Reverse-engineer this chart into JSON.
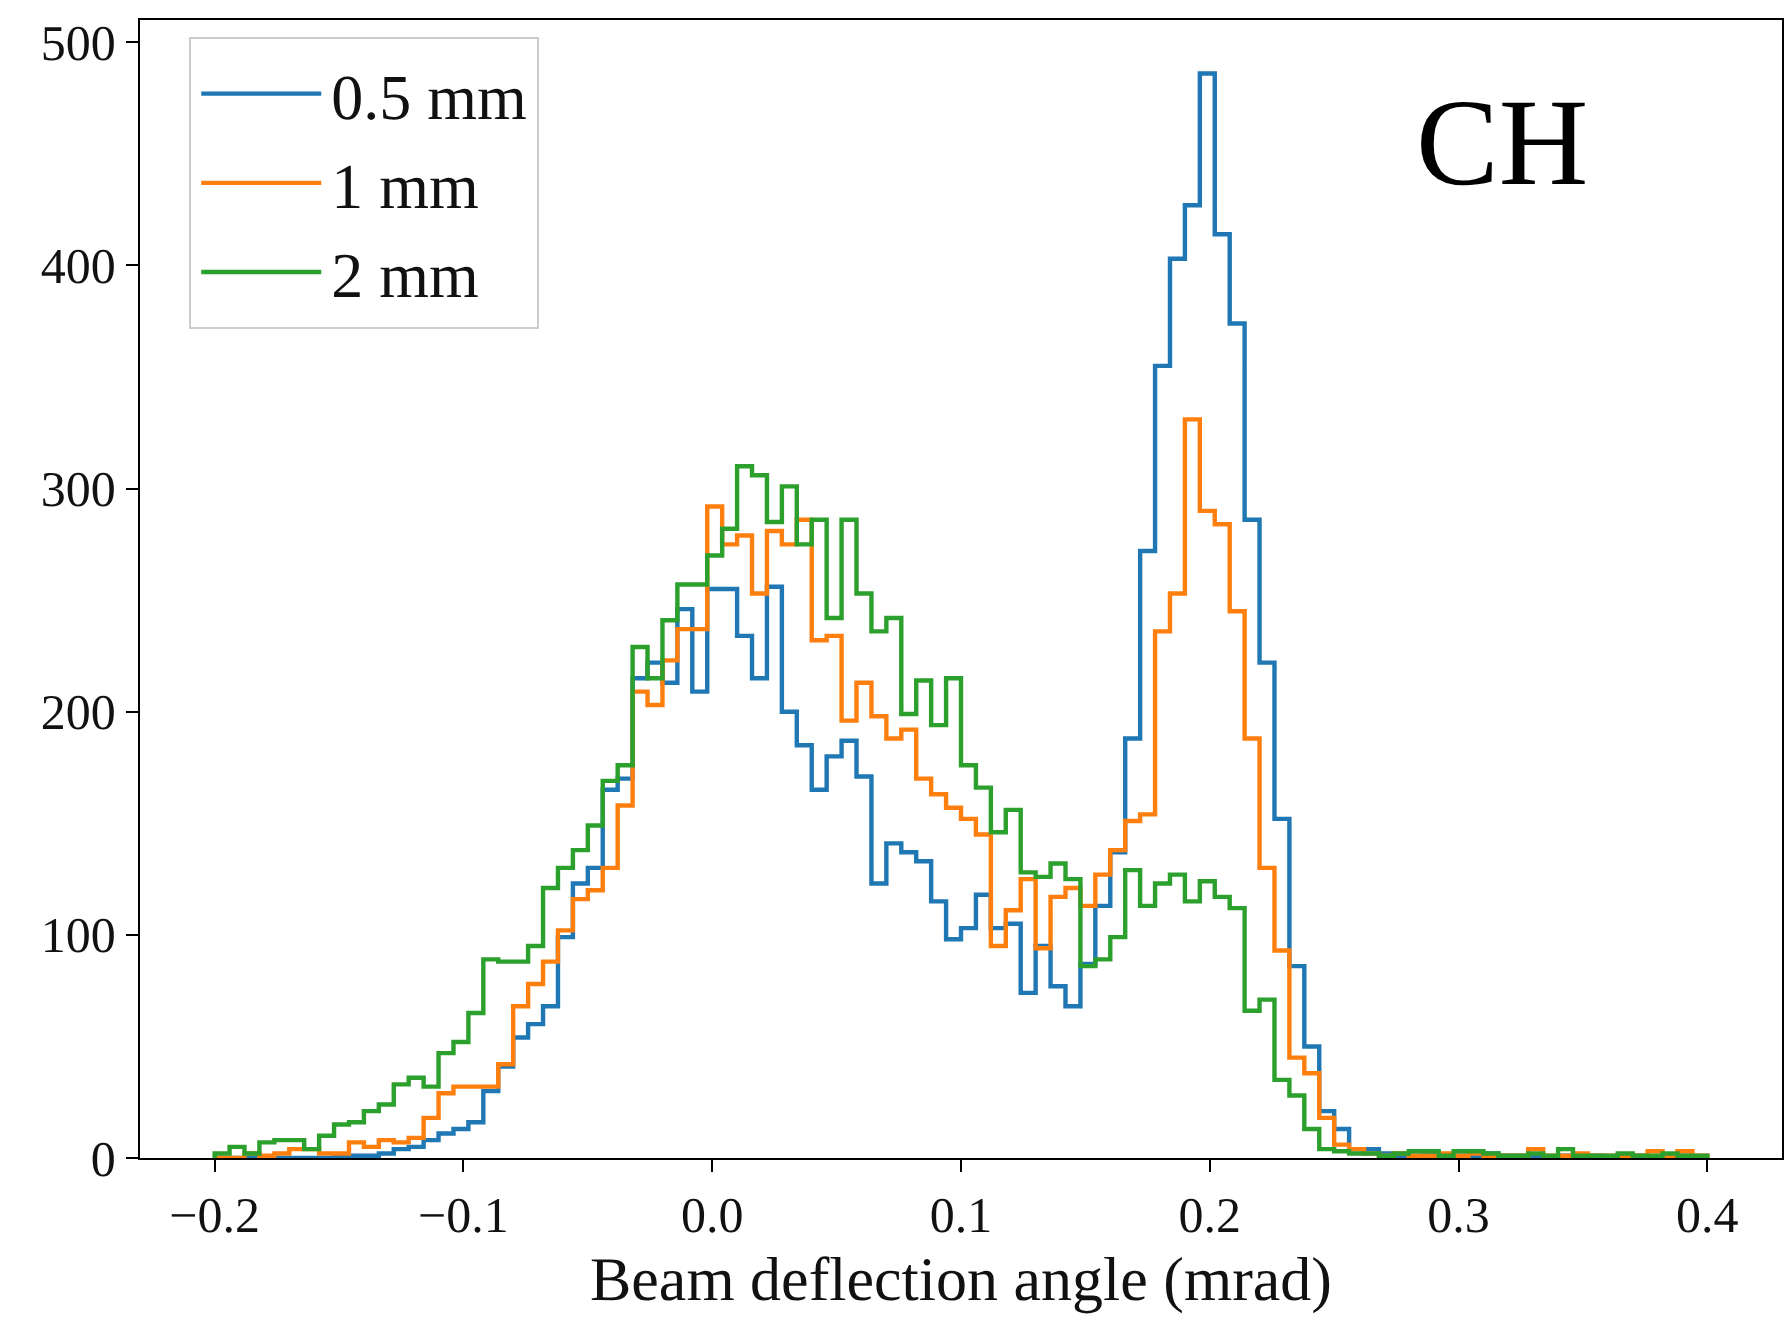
{
  "chart_data": {
    "type": "histogram",
    "xlabel": "Beam deflection angle (mrad)",
    "annotations": [
      "CH"
    ],
    "legend": "top left",
    "bins": [
      -0.2,
      -0.194,
      -0.188,
      -0.182,
      -0.176,
      -0.17,
      -0.164,
      -0.158,
      -0.152,
      -0.146,
      -0.14,
      -0.134,
      -0.128,
      -0.122,
      -0.116,
      -0.11,
      -0.104,
      -0.098,
      -0.092,
      -0.086,
      -0.08,
      -0.074,
      -0.068,
      -0.062,
      -0.056,
      -0.05,
      -0.044,
      -0.038,
      -0.032,
      -0.026,
      -0.02,
      -0.014,
      -0.008,
      -0.002,
      0.004,
      0.01,
      0.016,
      0.022,
      0.028,
      0.034,
      0.04,
      0.046,
      0.052,
      0.058,
      0.064,
      0.07,
      0.076,
      0.082,
      0.088,
      0.094,
      0.1,
      0.106,
      0.112,
      0.118,
      0.124,
      0.13,
      0.136,
      0.142,
      0.148,
      0.154,
      0.16,
      0.166,
      0.172,
      0.178,
      0.184,
      0.19,
      0.196,
      0.202,
      0.208,
      0.214,
      0.22,
      0.226,
      0.232,
      0.238,
      0.244,
      0.25,
      0.256,
      0.262,
      0.268,
      0.274,
      0.28,
      0.286,
      0.292,
      0.298,
      0.304,
      0.31,
      0.316,
      0.322,
      0.328,
      0.334,
      0.34,
      0.346,
      0.352,
      0.358,
      0.364,
      0.37,
      0.376,
      0.382,
      0.388,
      0.394,
      0.4
    ],
    "series": [
      {
        "name": "0.5 mm",
        "color": "#1f77b4",
        "values": [
          0,
          0,
          0,
          0,
          0,
          0,
          0,
          0,
          1,
          1,
          1,
          2,
          4,
          5,
          8,
          11,
          13,
          16,
          30,
          41,
          54,
          60,
          68,
          99,
          123,
          130,
          165,
          170,
          215,
          222,
          213,
          246,
          209,
          255,
          255,
          234,
          215,
          256,
          200,
          185,
          165,
          180,
          187,
          171,
          123,
          141,
          137,
          133,
          115,
          98,
          103,
          118,
          103,
          105,
          74,
          95,
          77,
          68,
          87,
          113,
          137,
          188,
          272,
          355,
          403,
          427,
          486,
          414,
          374,
          286,
          222,
          152,
          86,
          50,
          21,
          13,
          4,
          4,
          2,
          1,
          1,
          2,
          1,
          1,
          1,
          2,
          1,
          1,
          1,
          0,
          1,
          1,
          1,
          0,
          1,
          1,
          0,
          1,
          1,
          0
        ]
      },
      {
        "name": "1 mm",
        "color": "#ff7f0e",
        "values": [
          0,
          0,
          2,
          1,
          2,
          4,
          4,
          2,
          2,
          7,
          5,
          8,
          7,
          9,
          18,
          29,
          32,
          32,
          32,
          42,
          68,
          78,
          88,
          102,
          116,
          120,
          130,
          158,
          209,
          203,
          223,
          237,
          237,
          292,
          275,
          279,
          253,
          281,
          275,
          286,
          232,
          234,
          196,
          213,
          198,
          188,
          192,
          170,
          163,
          157,
          152,
          145,
          95,
          111,
          125,
          94,
          117,
          121,
          113,
          127,
          138,
          151,
          154,
          236,
          253,
          331,
          290,
          284,
          245,
          188,
          130,
          93,
          45,
          38,
          18,
          6,
          4,
          2,
          1,
          2,
          1,
          1,
          2,
          1,
          2,
          1,
          1,
          1,
          4,
          1,
          1,
          2,
          1,
          1,
          1,
          1,
          3,
          1,
          3,
          1
        ]
      },
      {
        "name": "2 mm",
        "color": "#2ca02c",
        "values": [
          2,
          5,
          2,
          7,
          8,
          8,
          4,
          10,
          15,
          16,
          21,
          24,
          33,
          36,
          32,
          47,
          52,
          65,
          89,
          88,
          88,
          95,
          121,
          130,
          138,
          149,
          169,
          176,
          229,
          215,
          241,
          257,
          257,
          270,
          282,
          310,
          306,
          285,
          301,
          275,
          286,
          242,
          286,
          253,
          236,
          242,
          199,
          214,
          194,
          215,
          176,
          166,
          146,
          156,
          128,
          126,
          132,
          125,
          86,
          89,
          99,
          129,
          113,
          123,
          127,
          115,
          124,
          117,
          112,
          66,
          71,
          35,
          28,
          13,
          4,
          3,
          2,
          2,
          1,
          2,
          3,
          3,
          1,
          3,
          3,
          2,
          1,
          1,
          2,
          1,
          4,
          1,
          1,
          1,
          2,
          1,
          1,
          2,
          1,
          1
        ]
      }
    ],
    "xlim": [
      -0.23,
      0.43
    ],
    "ylim": [
      0,
      510
    ],
    "xticks": [
      {
        "value": -0.2,
        "label": "−0.2"
      },
      {
        "value": -0.1,
        "label": "−0.1"
      },
      {
        "value": 0,
        "label": "0.0"
      },
      0.1,
      0.2,
      0.3,
      0.4
    ],
    "yticks": [
      0,
      100,
      200,
      300,
      400,
      500
    ]
  }
}
